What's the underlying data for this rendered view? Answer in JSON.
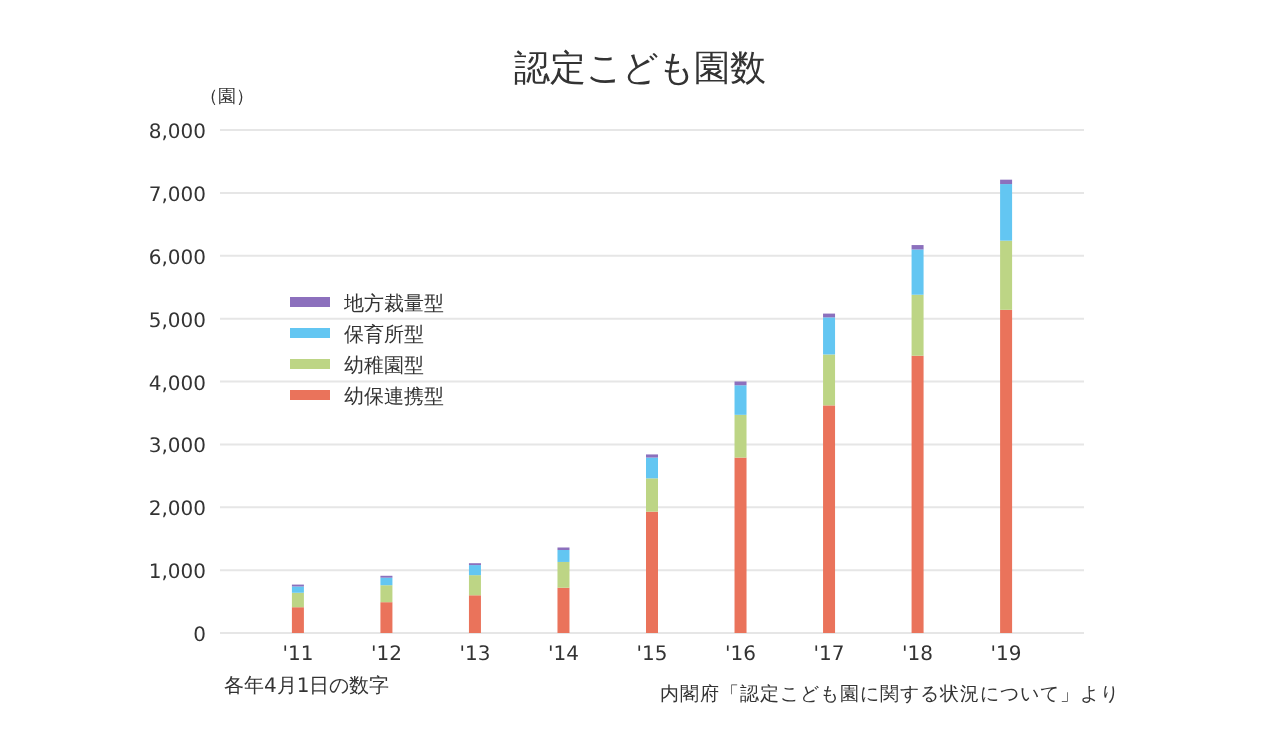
{
  "chart_data": {
    "type": "bar",
    "title": "認定こども園数",
    "ylabel": "（園）",
    "categories": [
      "'11",
      "'12",
      "'13",
      "'14",
      "'15",
      "'16",
      "'17",
      "'18",
      "'19"
    ],
    "stacked": true,
    "series": [
      {
        "name": "幼保連携型",
        "color": "#ea735b",
        "values": [
          410,
          490,
          600,
          720,
          1930,
          2790,
          3620,
          4410,
          5140
        ]
      },
      {
        "name": "幼稚園型",
        "color": "#bdd585",
        "values": [
          230,
          270,
          320,
          410,
          530,
          680,
          810,
          970,
          1100
        ]
      },
      {
        "name": "保育所型",
        "color": "#63c6f2",
        "values": [
          100,
          120,
          160,
          190,
          330,
          470,
          590,
          720,
          900
        ]
      },
      {
        "name": "地方裁量型",
        "color": "#8c70bd",
        "values": [
          30,
          30,
          30,
          40,
          50,
          60,
          60,
          70,
          70
        ]
      }
    ],
    "ylim": [
      0,
      8000
    ],
    "yticks": [
      0,
      {
        "value": 1000,
        "label": "1,000"
      },
      {
        "value": 2000,
        "label": "2,000"
      },
      {
        "value": 3000,
        "label": "3,000"
      },
      {
        "value": 4000,
        "label": "4,000"
      },
      {
        "value": 5000,
        "label": "5,000"
      },
      {
        "value": 6000,
        "label": "6,000"
      },
      {
        "value": 7000,
        "label": "7,000"
      },
      {
        "value": 8000,
        "label": "8,000"
      }
    ],
    "grid": "y",
    "legend": "top left",
    "annotations": [
      "各年4月1日の数字",
      "内閣府「認定こども園に関する状況について」より"
    ]
  }
}
